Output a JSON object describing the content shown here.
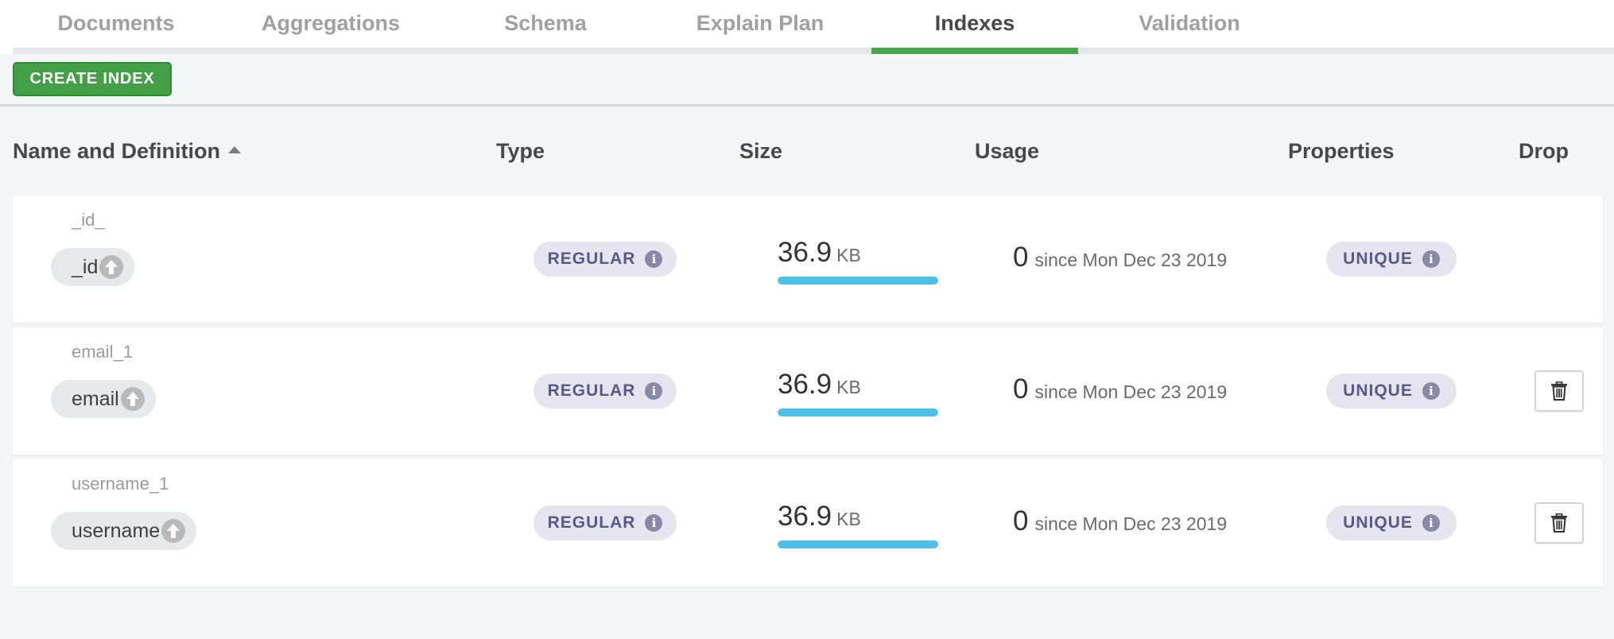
{
  "tabs": [
    {
      "label": "Documents",
      "active": false
    },
    {
      "label": "Aggregations",
      "active": false
    },
    {
      "label": "Schema",
      "active": false
    },
    {
      "label": "Explain Plan",
      "active": false
    },
    {
      "label": "Indexes",
      "active": true
    },
    {
      "label": "Validation",
      "active": false
    }
  ],
  "toolbar": {
    "create_index_label": "CREATE INDEX"
  },
  "table": {
    "columns": {
      "name": "Name and Definition",
      "type": "Type",
      "size": "Size",
      "usage": "Usage",
      "properties": "Properties",
      "drop": "Drop"
    },
    "sort": {
      "column": "name",
      "direction": "ascending"
    },
    "rows": [
      {
        "name": "_id_",
        "field": "_id",
        "direction": "ascending",
        "type": "REGULAR",
        "size_value": "36.9",
        "size_unit": "KB",
        "size_fraction": 1.0,
        "usage_count": "0",
        "usage_since": "since Mon Dec 23 2019",
        "property": "UNIQUE",
        "droppable": false
      },
      {
        "name": "email_1",
        "field": "email",
        "direction": "ascending",
        "type": "REGULAR",
        "size_value": "36.9",
        "size_unit": "KB",
        "size_fraction": 1.0,
        "usage_count": "0",
        "usage_since": "since Mon Dec 23 2019",
        "property": "UNIQUE",
        "droppable": true
      },
      {
        "name": "username_1",
        "field": "username",
        "direction": "ascending",
        "type": "REGULAR",
        "size_value": "36.9",
        "size_unit": "KB",
        "size_fraction": 1.0,
        "usage_count": "0",
        "usage_since": "since Mon Dec 23 2019",
        "property": "UNIQUE",
        "droppable": true
      }
    ]
  },
  "colors": {
    "accent": "#4ca54e",
    "create_button": "#43a047",
    "badge_bg": "#e6e4ef",
    "badge_text": "#5a5789",
    "size_bar": "#4ebfe6"
  },
  "icons": {
    "direction": "arrow-up-circle-icon",
    "info": "info-icon",
    "drop": "trash-icon",
    "sort": "caret-up-icon"
  }
}
